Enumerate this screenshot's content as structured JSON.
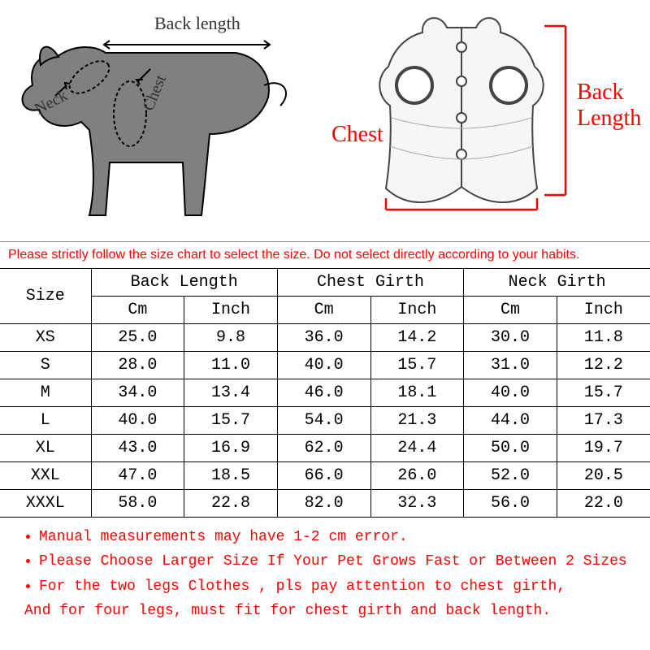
{
  "diagram_left": {
    "back_length_label": "Back length",
    "neck_label": "Neck",
    "chest_label": "Chest",
    "line_color": "#000000",
    "fill_color": "#808080"
  },
  "diagram_right": {
    "chest_label": "Chest",
    "back_length_label_1": "Back",
    "back_length_label_2": "Length",
    "label_color": "#ff0000",
    "bracket_color": "#ff0000",
    "vest_outline": "#444444",
    "vest_fill": "#f6f6f6"
  },
  "warning_text": "Please strictly follow the size chart to select the size. Do not select directly according to your habits.",
  "table": {
    "header_size": "Size",
    "groups": [
      "Back Length",
      "Chest Girth",
      "Neck Girth"
    ],
    "subheaders": [
      "Cm",
      "Inch",
      "Cm",
      "Inch",
      "Cm",
      "Inch"
    ],
    "rows": [
      [
        "XS",
        "25.0",
        "9.8",
        "36.0",
        "14.2",
        "30.0",
        "11.8"
      ],
      [
        "S",
        "28.0",
        "11.0",
        "40.0",
        "15.7",
        "31.0",
        "12.2"
      ],
      [
        "M",
        "34.0",
        "13.4",
        "46.0",
        "18.1",
        "40.0",
        "15.7"
      ],
      [
        "L",
        "40.0",
        "15.7",
        "54.0",
        "21.3",
        "44.0",
        "17.3"
      ],
      [
        "XL",
        "43.0",
        "16.9",
        "62.0",
        "24.4",
        "50.0",
        "19.7"
      ],
      [
        "XXL",
        "47.0",
        "18.5",
        "66.0",
        "26.0",
        "52.0",
        "20.5"
      ],
      [
        "XXXL",
        "58.0",
        "22.8",
        "82.0",
        "32.3",
        "56.0",
        "22.0"
      ]
    ],
    "border_color": "#000000",
    "font_family": "Courier New",
    "font_size_pt": 15
  },
  "notes": [
    "Manual measurements may have 1-2 cm error.",
    "Please Choose Larger Size If Your Pet Grows Fast or Between 2 Sizes",
    "For the two legs Clothes , pls pay attention to chest girth,",
    "And for four legs, must fit for chest girth and back length."
  ],
  "notes_color": "#ff0000"
}
